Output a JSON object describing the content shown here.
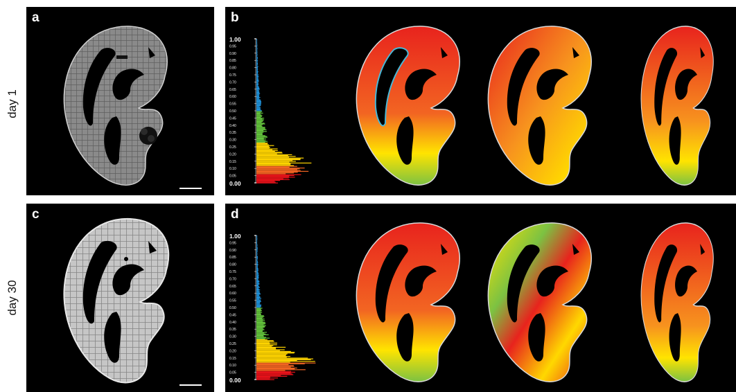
{
  "rows": {
    "top_label": "day 1",
    "bottom_label": "day 30"
  },
  "panels": {
    "a": "a",
    "b": "b",
    "c": "c",
    "d": "d"
  },
  "histogram": {
    "ticks": [
      "1.00",
      "0.95",
      "0.90",
      "0.85",
      "0.80",
      "0.75",
      "0.70",
      "0.65",
      "0.60",
      "0.55",
      "0.50",
      "0.45",
      "0.40",
      "0.35",
      "0.30",
      "0.25",
      "0.20",
      "0.15",
      "0.10",
      "0.05",
      "0.00"
    ],
    "colors": {
      "low": "#e8121a",
      "mid": "#ffd400",
      "high": "#63c23c",
      "top": "#1f8fd6"
    }
  },
  "colors": {
    "background": "#000000",
    "grayscale_ear": "#8f8f8f",
    "grayscale_ear_day30": "#bdbdbd",
    "heatmap_red": "#e8231d",
    "heatmap_orange": "#f7931e",
    "heatmap_yellow": "#ffe400",
    "heatmap_green": "#7cc242"
  }
}
